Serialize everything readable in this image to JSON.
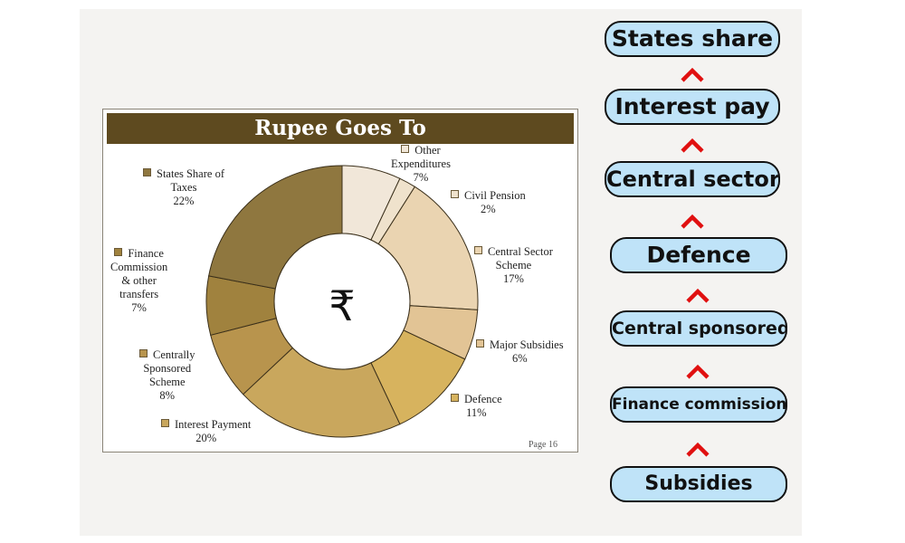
{
  "chart_data": {
    "type": "pie",
    "title": "Rupee Goes To",
    "center_symbol": "₹",
    "page_label": "Page  16",
    "slices": [
      {
        "label_lines": [
          "Other",
          "Expenditures"
        ],
        "value": 7,
        "pct_label": "7%",
        "color": "#f1e7d9"
      },
      {
        "label_lines": [
          "Civil Pension"
        ],
        "value": 2,
        "pct_label": "2%",
        "color": "#efe2cc"
      },
      {
        "label_lines": [
          "Central Sector",
          "Scheme"
        ],
        "value": 17,
        "pct_label": "17%",
        "color": "#ead4b1"
      },
      {
        "label_lines": [
          "Major Subsidies"
        ],
        "value": 6,
        "pct_label": "6%",
        "color": "#e2c495"
      },
      {
        "label_lines": [
          "Defence"
        ],
        "value": 11,
        "pct_label": "11%",
        "color": "#d7b35e"
      },
      {
        "label_lines": [
          "Interest Payment"
        ],
        "value": 20,
        "pct_label": "20%",
        "color": "#c9a75d"
      },
      {
        "label_lines": [
          "Centrally",
          "Sponsored",
          "Scheme"
        ],
        "value": 8,
        "pct_label": "8%",
        "color": "#b8944d"
      },
      {
        "label_lines": [
          "Finance",
          "Commission",
          "& other",
          "transfers"
        ],
        "value": 7,
        "pct_label": "7%",
        "color": "#a0823e"
      },
      {
        "label_lines": [
          "States Share of",
          "Taxes"
        ],
        "value": 22,
        "pct_label": "22%",
        "color": "#8f773f"
      }
    ]
  },
  "flow": {
    "items": [
      {
        "label": "States share"
      },
      {
        "label": "Interest pay"
      },
      {
        "label": "Central sector"
      },
      {
        "label": "Defence"
      },
      {
        "label": "Central sponsored"
      },
      {
        "label": "Finance commission"
      },
      {
        "label": "Subsidies"
      }
    ],
    "arrow_color": "#e01010"
  }
}
